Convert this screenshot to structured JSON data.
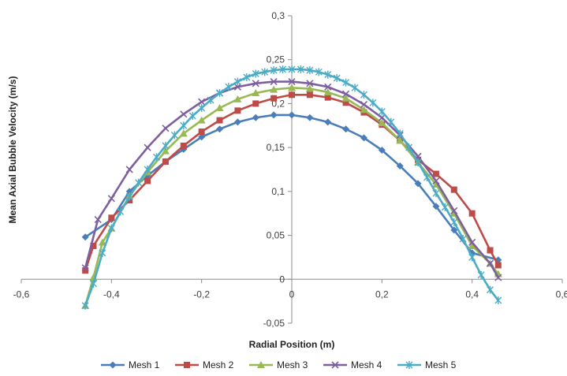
{
  "chart_data": {
    "type": "line",
    "title": "",
    "xlabel": "Radial Position (m)",
    "ylabel": "Mean Axial Bubble Velocity (m/s)",
    "xlim": [
      -0.6,
      0.6
    ],
    "ylim": [
      -0.05,
      0.3
    ],
    "x_ticks": [
      "-0,6",
      "-0,4",
      "-0,2",
      "0",
      "0,2",
      "0,4",
      "0,6"
    ],
    "y_ticks": [
      "-0,05",
      "0",
      "0,05",
      "0,1",
      "0,15",
      "0,2",
      "0,25",
      "0,3"
    ],
    "legend_position": "bottom",
    "grid": false,
    "series": [
      {
        "name": "Mesh 1",
        "color": "#4a7ebb",
        "marker": "diamond",
        "x": [
          -0.458,
          -0.4,
          -0.36,
          -0.32,
          -0.28,
          -0.24,
          -0.2,
          -0.16,
          -0.12,
          -0.08,
          -0.04,
          0.0,
          0.04,
          0.08,
          0.12,
          0.16,
          0.2,
          0.24,
          0.28,
          0.32,
          0.36,
          0.4,
          0.458
        ],
        "y": [
          0.048,
          0.068,
          0.1,
          0.118,
          0.134,
          0.148,
          0.162,
          0.171,
          0.179,
          0.184,
          0.187,
          0.187,
          0.184,
          0.179,
          0.171,
          0.161,
          0.147,
          0.129,
          0.109,
          0.083,
          0.056,
          0.03,
          0.022
        ]
      },
      {
        "name": "Mesh 2",
        "color": "#be4b48",
        "marker": "square",
        "x": [
          -0.458,
          -0.44,
          -0.4,
          -0.36,
          -0.32,
          -0.28,
          -0.24,
          -0.2,
          -0.16,
          -0.12,
          -0.08,
          -0.04,
          0.0,
          0.04,
          0.08,
          0.12,
          0.16,
          0.2,
          0.24,
          0.28,
          0.32,
          0.36,
          0.4,
          0.44,
          0.458
        ],
        "y": [
          0.01,
          0.038,
          0.07,
          0.09,
          0.112,
          0.134,
          0.152,
          0.168,
          0.181,
          0.192,
          0.2,
          0.206,
          0.21,
          0.21,
          0.207,
          0.201,
          0.19,
          0.176,
          0.158,
          0.136,
          0.12,
          0.102,
          0.075,
          0.033,
          0.016
        ]
      },
      {
        "name": "Mesh 3",
        "color": "#98b954",
        "marker": "triangle",
        "x": [
          -0.458,
          -0.44,
          -0.42,
          -0.4,
          -0.36,
          -0.32,
          -0.28,
          -0.24,
          -0.2,
          -0.16,
          -0.12,
          -0.08,
          -0.04,
          0.0,
          0.04,
          0.08,
          0.12,
          0.16,
          0.2,
          0.24,
          0.28,
          0.32,
          0.36,
          0.4,
          0.44,
          0.458
        ],
        "y": [
          -0.03,
          0.002,
          0.042,
          0.058,
          0.095,
          0.122,
          0.146,
          0.166,
          0.181,
          0.195,
          0.205,
          0.212,
          0.216,
          0.218,
          0.217,
          0.213,
          0.206,
          0.193,
          0.178,
          0.158,
          0.133,
          0.108,
          0.075,
          0.038,
          0.018,
          0.006
        ]
      },
      {
        "name": "Mesh 4",
        "color": "#7d5fa0",
        "marker": "x",
        "x": [
          -0.458,
          -0.43,
          -0.4,
          -0.36,
          -0.32,
          -0.28,
          -0.24,
          -0.2,
          -0.16,
          -0.12,
          -0.08,
          -0.04,
          0.0,
          0.04,
          0.08,
          0.12,
          0.16,
          0.2,
          0.24,
          0.28,
          0.32,
          0.36,
          0.4,
          0.44,
          0.458
        ],
        "y": [
          0.013,
          0.068,
          0.092,
          0.125,
          0.15,
          0.172,
          0.188,
          0.202,
          0.212,
          0.219,
          0.223,
          0.225,
          0.225,
          0.223,
          0.219,
          0.211,
          0.199,
          0.184,
          0.164,
          0.14,
          0.112,
          0.078,
          0.042,
          0.018,
          0.002
        ]
      },
      {
        "name": "Mesh 5",
        "color": "#4bacc6",
        "marker": "star",
        "x": [
          -0.458,
          -0.44,
          -0.42,
          -0.4,
          -0.38,
          -0.36,
          -0.34,
          -0.32,
          -0.3,
          -0.28,
          -0.26,
          -0.24,
          -0.22,
          -0.2,
          -0.18,
          -0.16,
          -0.14,
          -0.12,
          -0.1,
          -0.08,
          -0.06,
          -0.04,
          -0.02,
          0.0,
          0.02,
          0.04,
          0.06,
          0.08,
          0.1,
          0.12,
          0.14,
          0.16,
          0.18,
          0.2,
          0.22,
          0.24,
          0.26,
          0.28,
          0.3,
          0.32,
          0.34,
          0.36,
          0.38,
          0.4,
          0.42,
          0.44,
          0.458
        ],
        "y": [
          -0.03,
          -0.005,
          0.03,
          0.058,
          0.077,
          0.094,
          0.11,
          0.125,
          0.139,
          0.152,
          0.164,
          0.175,
          0.186,
          0.195,
          0.204,
          0.212,
          0.219,
          0.225,
          0.23,
          0.234,
          0.236,
          0.238,
          0.239,
          0.239,
          0.239,
          0.238,
          0.236,
          0.233,
          0.229,
          0.224,
          0.218,
          0.21,
          0.201,
          0.191,
          0.179,
          0.166,
          0.15,
          0.133,
          0.116,
          0.098,
          0.082,
          0.065,
          0.046,
          0.025,
          0.005,
          -0.012,
          -0.024
        ]
      }
    ]
  }
}
